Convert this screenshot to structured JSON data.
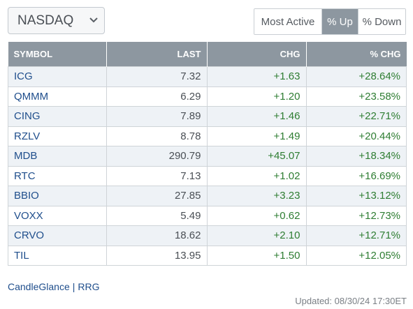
{
  "exchange_select": {
    "value": "NASDAQ"
  },
  "filter_tabs": [
    {
      "label": "Most Active",
      "active": false
    },
    {
      "label": "% Up",
      "active": true
    },
    {
      "label": "% Down",
      "active": false
    }
  ],
  "table": {
    "headers": [
      "SYMBOL",
      "LAST",
      "CHG",
      "% CHG"
    ],
    "rows": [
      {
        "symbol": "ICG",
        "last": "7.32",
        "chg": "+1.63",
        "pct": "+28.64%"
      },
      {
        "symbol": "QMMM",
        "last": "6.29",
        "chg": "+1.20",
        "pct": "+23.58%"
      },
      {
        "symbol": "CING",
        "last": "7.89",
        "chg": "+1.46",
        "pct": "+22.71%"
      },
      {
        "symbol": "RZLV",
        "last": "8.78",
        "chg": "+1.49",
        "pct": "+20.44%"
      },
      {
        "symbol": "MDB",
        "last": "290.79",
        "chg": "+45.07",
        "pct": "+18.34%"
      },
      {
        "symbol": "RTC",
        "last": "7.13",
        "chg": "+1.02",
        "pct": "+16.69%"
      },
      {
        "symbol": "BBIO",
        "last": "27.85",
        "chg": "+3.23",
        "pct": "+13.12%"
      },
      {
        "symbol": "VOXX",
        "last": "5.49",
        "chg": "+0.62",
        "pct": "+12.73%"
      },
      {
        "symbol": "CRVO",
        "last": "18.62",
        "chg": "+2.10",
        "pct": "+12.71%"
      },
      {
        "symbol": "TIL",
        "last": "13.95",
        "chg": "+1.50",
        "pct": "+12.05%"
      }
    ]
  },
  "footer": {
    "link_candleglance": "CandleGlance",
    "separator": "|",
    "link_rrg": "RRG",
    "updated": "Updated: 08/30/24 17:30ET"
  },
  "colors": {
    "header_bg": "#8d97a0",
    "positive": "#2e7d32",
    "link": "#1f4e8c",
    "row_alt": "#eef2f6"
  },
  "icons": {
    "select_caret": "chevron-down-icon"
  }
}
